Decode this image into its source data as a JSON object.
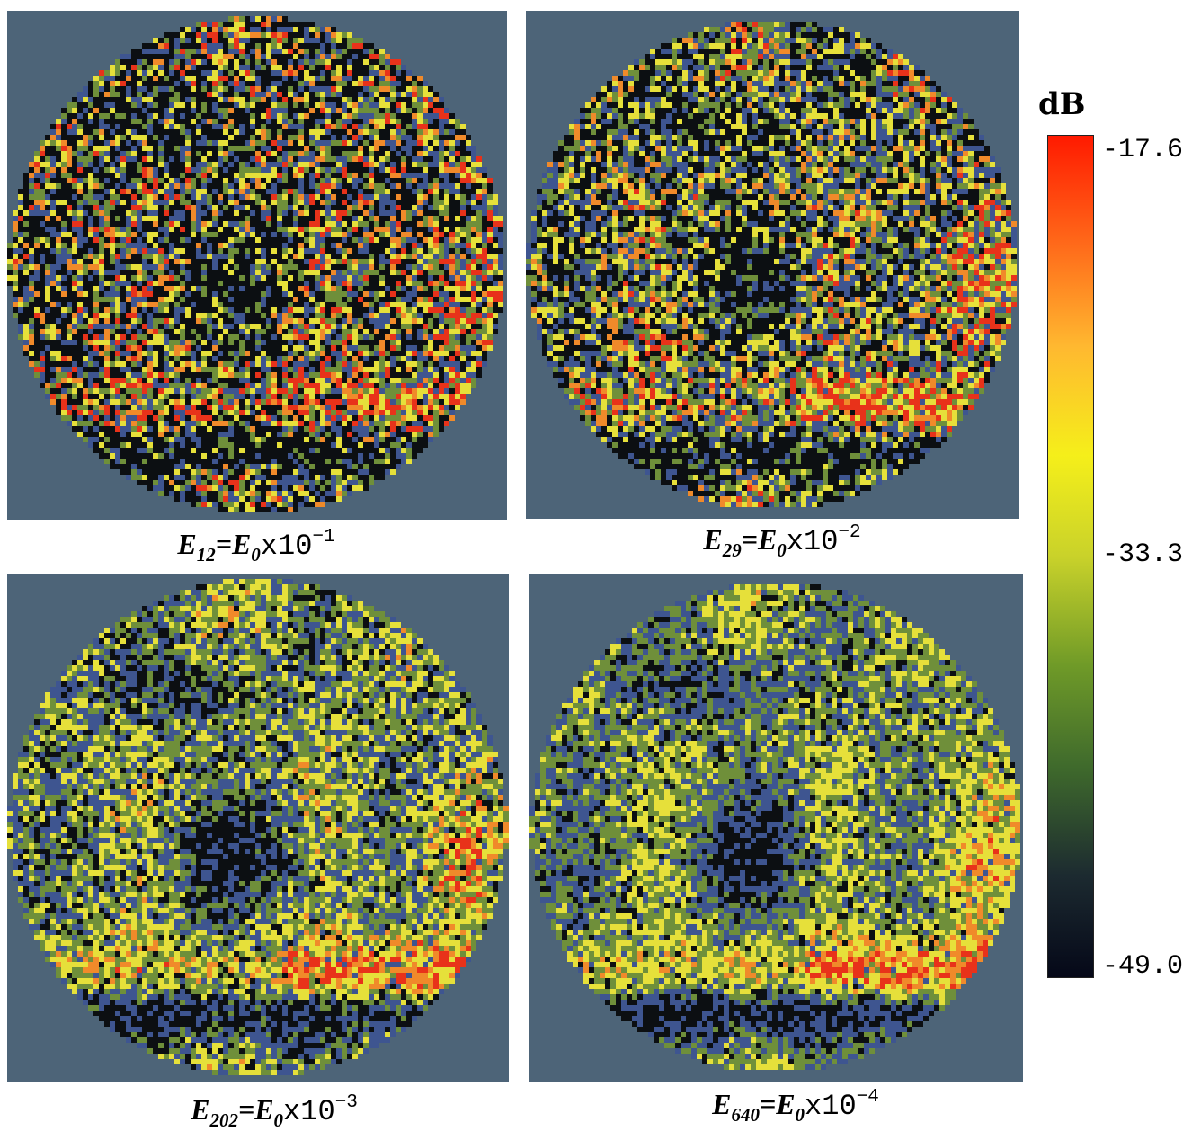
{
  "panels": [
    {
      "caption": {
        "symbol": "E",
        "subscript": "12",
        "equals_symbol": "E",
        "equals_subscript": "0",
        "times": "x10",
        "exponent": "−1"
      },
      "noise_level": 0.95,
      "visible_features": [
        "dark speckled regions",
        "yellow-green mottling",
        "orange patches on right"
      ]
    },
    {
      "caption": {
        "symbol": "E",
        "subscript": "29",
        "equals_symbol": "E",
        "equals_subscript": "0",
        "times": "x10",
        "exponent": "−2"
      },
      "noise_level": 0.75,
      "visible_features": [
        "yellow bands",
        "red-orange band lower right",
        "dark horizontal band near bottom"
      ]
    },
    {
      "caption": {
        "symbol": "E",
        "subscript": "202",
        "equals_symbol": "E",
        "equals_subscript": "0",
        "times": "x10",
        "exponent": "−3"
      },
      "noise_level": 0.45,
      "visible_features": [
        "blue regions",
        "yellow bands",
        "red patch lower right"
      ]
    },
    {
      "caption": {
        "symbol": "E",
        "subscript": "640",
        "equals_symbol": "E",
        "equals_subscript": "0",
        "times": "x10",
        "exponent": "−4"
      },
      "noise_level": 0.35,
      "visible_features": [
        "smooth blue regions",
        "yellow bands",
        "red patch lower right"
      ]
    }
  ],
  "colorbar": {
    "unit": "dB",
    "ticks": [
      "-17.6",
      "-33.3",
      "-49.0"
    ],
    "max": -17.6,
    "mid": -33.3,
    "min": -49.0,
    "colors": [
      "#ff1a00",
      "#ff6a1a",
      "#ffb830",
      "#f5ef1a",
      "#c9d22a",
      "#6f9a28",
      "#3f6a2c",
      "#1c2a30",
      "#050818"
    ]
  },
  "colors": {
    "background_grey_blue": "#4d6478",
    "dark": "#0c0f12",
    "blue": "#3e5590",
    "green": "#6f8f3a",
    "yellow": "#e6e03a",
    "orange": "#f08a2a",
    "red": "#e8321a"
  }
}
